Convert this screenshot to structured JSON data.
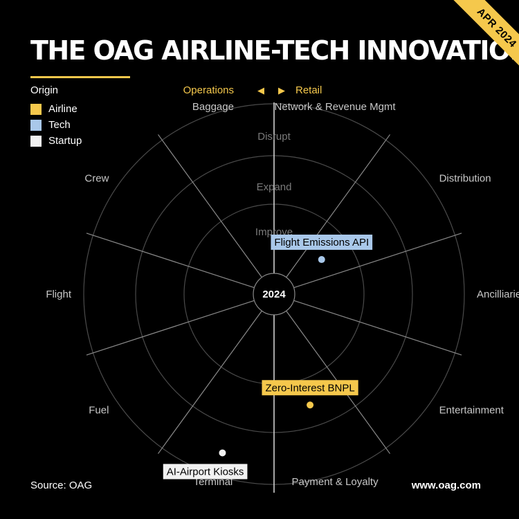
{
  "title": "THE OAG AIRLINE-TECH INNOVATION RADAR",
  "ribbon_label": "APR 2024",
  "legend": {
    "title": "Origin",
    "items": [
      {
        "label": "Airline",
        "color": "#f5c84c"
      },
      {
        "label": "Tech",
        "color": "#a9c8ea"
      },
      {
        "label": "Startup",
        "color": "#f2f2f2"
      }
    ]
  },
  "direction": {
    "left": "Operations",
    "left_arrow": "◀",
    "right_arrow": "▶",
    "right": "Retail"
  },
  "rings": [
    "Improve",
    "Expand",
    "Disrupt"
  ],
  "center_label": "2024",
  "sectors": [
    "Network & Revenue Mgmt",
    "Distribution",
    "Ancilliaries",
    "Entertainment",
    "Payment & Loyalty",
    "Terminal",
    "Fuel",
    "Flight",
    "Crew",
    "Baggage"
  ],
  "items": [
    {
      "label": "Flight Emissions API",
      "origin": "Tech",
      "color": "#a9c8ea",
      "sector": "Distribution",
      "ring": "Improve"
    },
    {
      "label": "Zero-Interest BNPL",
      "origin": "Airline",
      "color": "#f5c84c",
      "sector": "Payment & Loyalty",
      "ring": "Expand"
    },
    {
      "label": "AI-Airport Kiosks",
      "origin": "Startup",
      "color": "#f2f2f2",
      "sector": "Terminal",
      "ring": "Disrupt"
    }
  ],
  "source": "Source: OAG",
  "url": "www.oag.com"
}
